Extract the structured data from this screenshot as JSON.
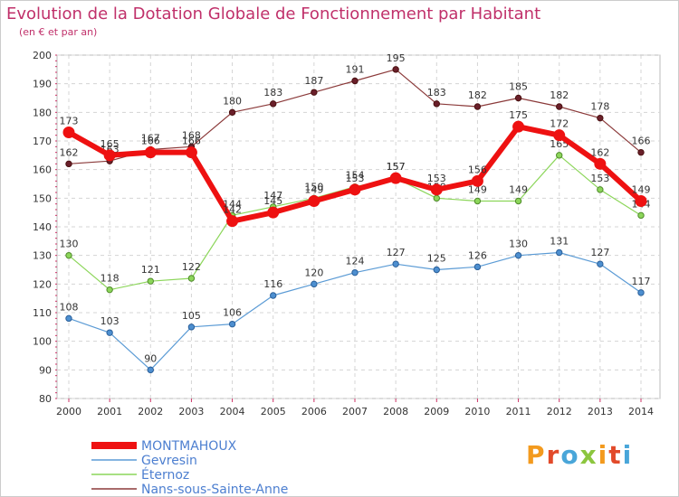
{
  "header": {
    "title": "Evolution de la Dotation Globale de Fonctionnement par Habitant",
    "subtitle": "(en € et par an)"
  },
  "logo": {
    "text": "Proxiti",
    "colors": [
      "#f39a1e",
      "#e24a2a",
      "#49a6d9",
      "#8cc63f"
    ]
  },
  "chart_data": {
    "type": "line",
    "title": "Evolution de la Dotation Globale de Fonctionnement par Habitant",
    "subtitle": "(en € et par an)",
    "xlabel": "",
    "ylabel": "",
    "x": [
      "2000",
      "2001",
      "2002",
      "2003",
      "2004",
      "2005",
      "2006",
      "2007",
      "2008",
      "2009",
      "2010",
      "2011",
      "2012",
      "2013",
      "2014"
    ],
    "ylim": [
      80,
      200
    ],
    "yticks": [
      80,
      90,
      100,
      110,
      120,
      130,
      140,
      150,
      160,
      170,
      180,
      190,
      200
    ],
    "grid": true,
    "legend_position": "bottom",
    "series": [
      {
        "name": "Nans-sous-Sainte-Anne",
        "color": "#8b3a3a",
        "values": [
          162,
          163,
          167,
          168,
          180,
          183,
          187,
          191,
          195,
          183,
          182,
          185,
          182,
          178,
          166
        ]
      },
      {
        "name": "Éternoz",
        "color": "#8cd65a",
        "values": [
          130,
          118,
          121,
          122,
          144,
          147,
          150,
          154,
          157,
          150,
          149,
          149,
          165,
          153,
          144
        ]
      },
      {
        "name": "Gevresin",
        "color": "#5b9bd5",
        "values": [
          108,
          103,
          90,
          105,
          106,
          116,
          120,
          124,
          127,
          125,
          126,
          130,
          131,
          127,
          117
        ]
      },
      {
        "name": "MONTMAHOUX",
        "color": "#ee1111",
        "values": [
          173,
          165,
          166,
          166,
          142,
          145,
          149,
          153,
          157,
          153,
          156,
          175,
          172,
          162,
          149
        ]
      }
    ]
  }
}
